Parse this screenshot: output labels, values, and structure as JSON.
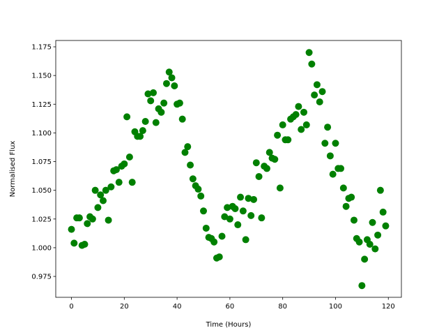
{
  "chart_data": {
    "type": "scatter",
    "title": "",
    "xlabel": "Time (Hours)",
    "ylabel": "Normalised Flux",
    "xlim": [
      -5.95,
      124.95
    ],
    "ylim": [
      0.9568,
      1.1805
    ],
    "xticks": [
      0,
      20,
      40,
      60,
      80,
      100,
      120
    ],
    "xtick_labels": [
      "0",
      "20",
      "40",
      "60",
      "80",
      "100",
      "120"
    ],
    "yticks": [
      0.975,
      1.0,
      1.025,
      1.05,
      1.075,
      1.1,
      1.125,
      1.15,
      1.175
    ],
    "ytick_labels": [
      "0.975",
      "1.000",
      "1.025",
      "1.050",
      "1.075",
      "1.100",
      "1.125",
      "1.150",
      "1.175"
    ],
    "grid": false,
    "marker_color": "#008000",
    "series": [
      {
        "x": [
          0,
          1,
          2,
          3,
          4,
          5,
          6,
          7,
          8,
          9,
          10,
          11,
          12,
          13,
          14,
          15,
          16,
          17,
          18,
          19,
          20,
          21,
          22,
          23,
          24,
          25,
          26,
          27,
          28,
          29,
          30,
          31,
          32,
          33,
          34,
          35,
          36,
          37,
          38,
          39,
          40,
          41,
          42,
          43,
          44,
          45,
          46,
          47,
          48,
          49,
          50,
          51,
          52,
          53,
          54,
          55,
          56,
          57,
          58,
          59,
          60,
          61,
          62,
          63,
          64,
          65,
          66,
          67,
          68,
          69,
          70,
          71,
          72,
          73,
          74,
          75,
          76,
          77,
          78,
          79,
          80,
          81,
          82,
          83,
          84,
          85,
          86,
          87,
          88,
          89,
          90,
          91,
          92,
          93,
          94,
          95,
          96,
          97,
          98,
          99,
          100,
          101,
          102,
          103,
          104,
          105,
          106,
          107,
          108,
          109,
          110,
          111,
          112,
          113,
          114,
          115,
          116,
          117,
          118,
          119
        ],
        "y": [
          1.016,
          1.004,
          1.026,
          1.026,
          1.002,
          1.003,
          1.021,
          1.027,
          1.025,
          1.05,
          1.035,
          1.046,
          1.041,
          1.05,
          1.024,
          1.053,
          1.067,
          1.068,
          1.057,
          1.071,
          1.073,
          1.114,
          1.079,
          1.057,
          1.101,
          1.097,
          1.097,
          1.102,
          1.11,
          1.134,
          1.128,
          1.135,
          1.109,
          1.121,
          1.118,
          1.126,
          1.143,
          1.153,
          1.148,
          1.141,
          1.125,
          1.126,
          1.112,
          1.083,
          1.088,
          1.072,
          1.06,
          1.054,
          1.051,
          1.045,
          1.032,
          1.017,
          1.009,
          1.008,
          1.005,
          0.991,
          0.992,
          1.01,
          1.027,
          1.035,
          1.025,
          1.036,
          1.034,
          1.02,
          1.044,
          1.032,
          1.007,
          1.043,
          1.028,
          1.042,
          1.074,
          1.062,
          1.026,
          1.071,
          1.069,
          1.083,
          1.078,
          1.077,
          1.098,
          1.052,
          1.107,
          1.094,
          1.094,
          1.112,
          1.114,
          1.116,
          1.123,
          1.103,
          1.118,
          1.107,
          1.17,
          1.16,
          1.133,
          1.142,
          1.127,
          1.136,
          1.091,
          1.105,
          1.08,
          1.064,
          1.091,
          1.069,
          1.069,
          1.052,
          1.036,
          1.043,
          1.044,
          1.024,
          1.008,
          1.005,
          0.967,
          0.99,
          1.007,
          1.003,
          1.022,
          0.999,
          1.011,
          1.05,
          1.031,
          1.019
        ]
      }
    ]
  }
}
